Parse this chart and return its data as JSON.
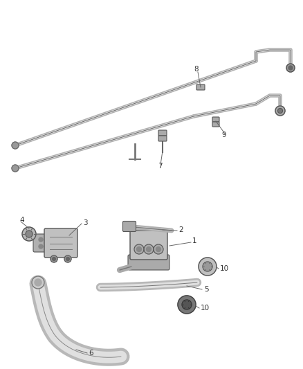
{
  "bg_color": "#ffffff",
  "fig_width": 4.38,
  "fig_height": 5.33,
  "dpi": 100,
  "tube_color": "#888888",
  "tube_dark": "#555555",
  "tube_light": "#cccccc",
  "label_color": "#333333",
  "label_fs": 7.5
}
